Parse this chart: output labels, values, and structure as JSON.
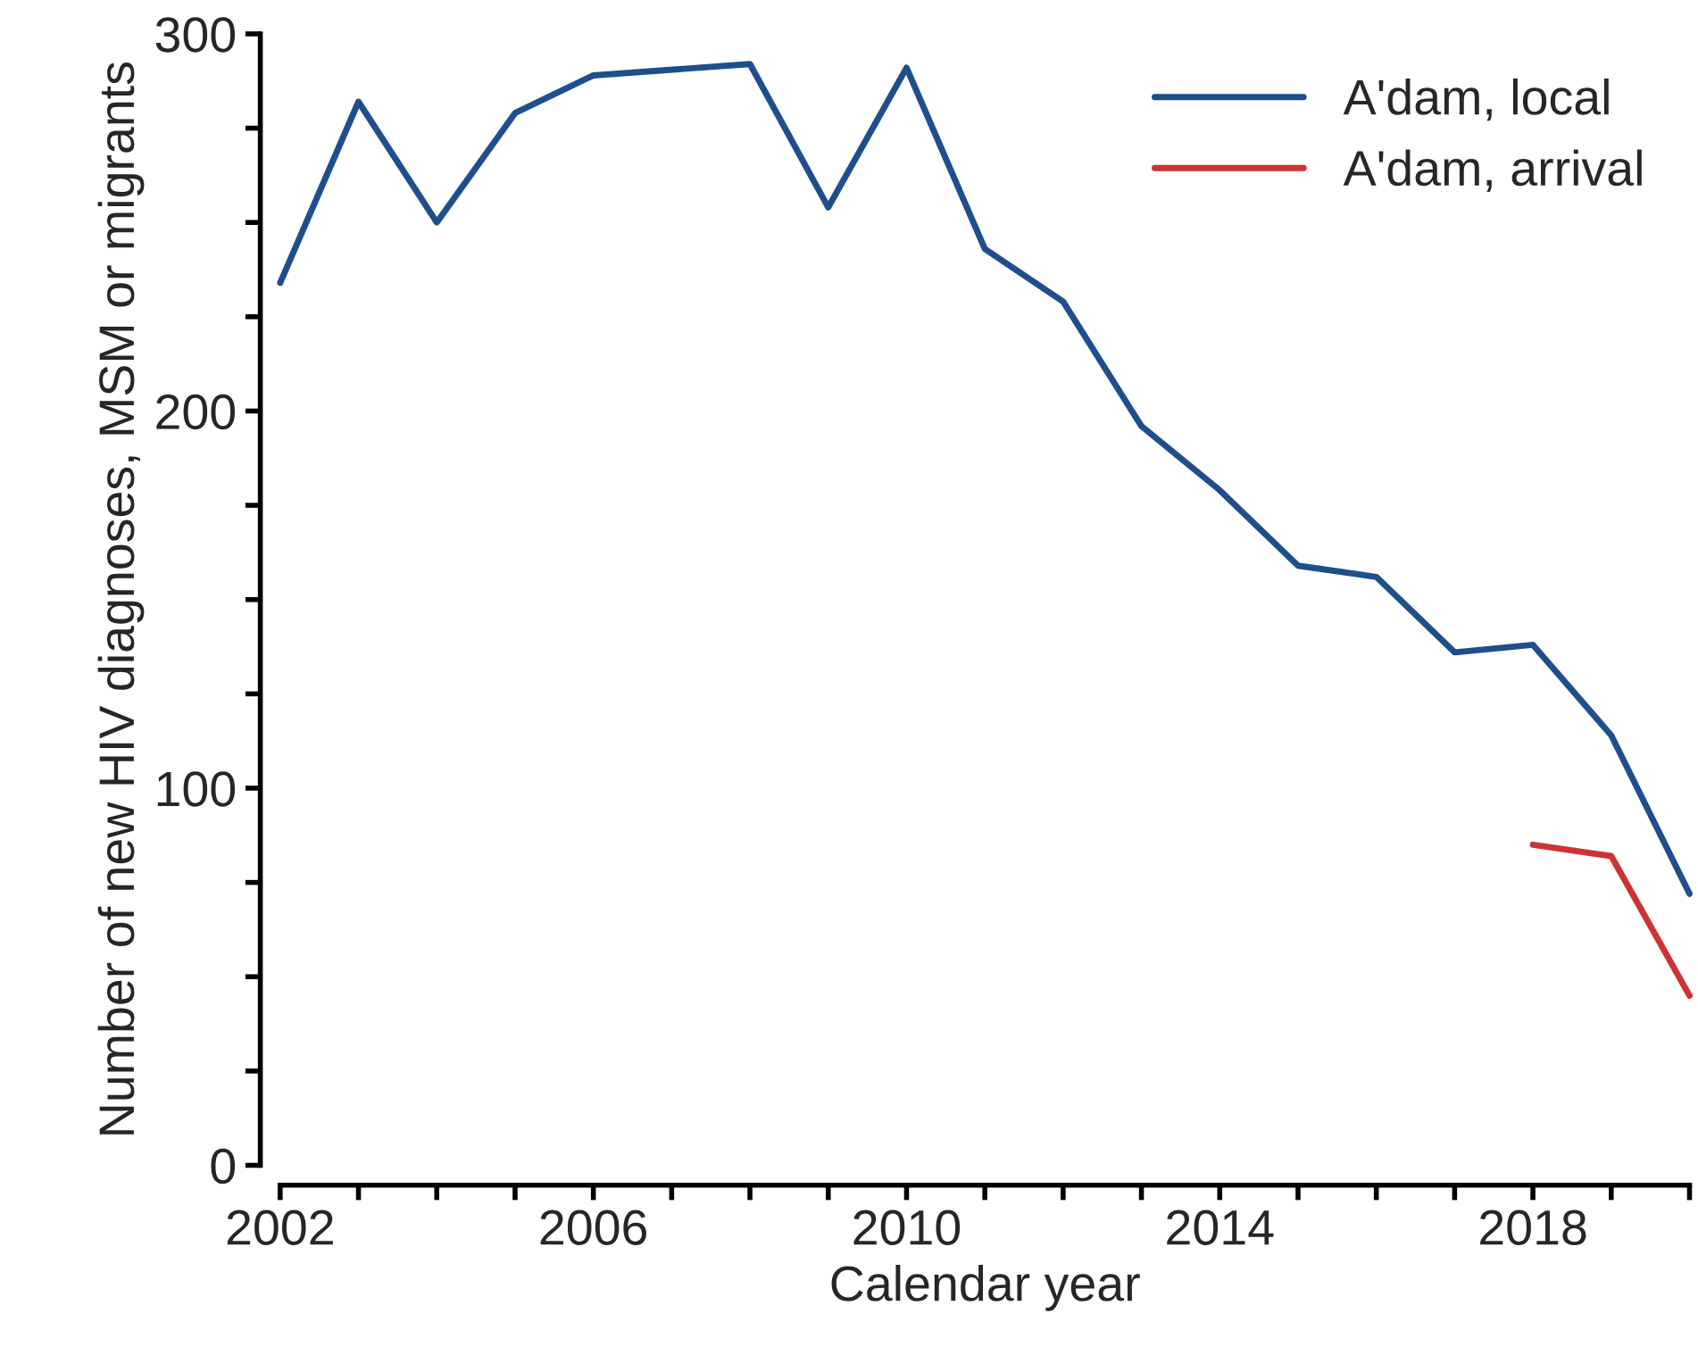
{
  "chart_data": {
    "type": "line",
    "xlabel": "Calendar year",
    "ylabel": "Number of new HIV diagnoses, MSM or migrants",
    "x": [
      2002,
      2003,
      2004,
      2005,
      2006,
      2008,
      2009,
      2010,
      2011,
      2012,
      2013,
      2014,
      2015,
      2016,
      2017,
      2018,
      2019,
      2020
    ],
    "series": [
      {
        "name": "A'dam, local",
        "color": "#1f4e8c",
        "values": [
          234,
          282,
          250,
          279,
          289,
          292,
          254,
          291,
          243,
          229,
          196,
          179,
          159,
          156,
          136,
          138,
          114,
          72
        ]
      },
      {
        "name": "A'dam, arrival",
        "color": "#cc3333",
        "x": [
          2018,
          2019,
          2020
        ],
        "values": [
          85,
          82,
          45
        ]
      }
    ],
    "xlim": [
      2002,
      2020
    ],
    "ylim": [
      0,
      300
    ],
    "xticks": [
      2002,
      {
        "value": 2003,
        "label": null
      },
      {
        "value": 2004,
        "label": null
      },
      {
        "value": 2005,
        "label": null
      },
      2006,
      {
        "value": 2007,
        "label": null
      },
      {
        "value": 2008,
        "label": null
      },
      {
        "value": 2009,
        "label": null
      },
      2010,
      {
        "value": 2011,
        "label": null
      },
      {
        "value": 2012,
        "label": null
      },
      {
        "value": 2013,
        "label": null
      },
      2014,
      {
        "value": 2015,
        "label": null
      },
      {
        "value": 2016,
        "label": null
      },
      {
        "value": 2017,
        "label": null
      },
      2018,
      {
        "value": 2019,
        "label": null
      },
      {
        "value": 2020,
        "label": null
      }
    ],
    "yticks": [
      0,
      {
        "value": 25,
        "label": null
      },
      {
        "value": 50,
        "label": null
      },
      {
        "value": 75,
        "label": null
      },
      100,
      {
        "value": 125,
        "label": null
      },
      {
        "value": 150,
        "label": null
      },
      {
        "value": 175,
        "label": null
      },
      200,
      {
        "value": 225,
        "label": null
      },
      {
        "value": 250,
        "label": null
      },
      {
        "value": 275,
        "label": null
      },
      300
    ],
    "grid": false,
    "legend": "top right",
    "line_style": "solid",
    "marker": "none"
  }
}
